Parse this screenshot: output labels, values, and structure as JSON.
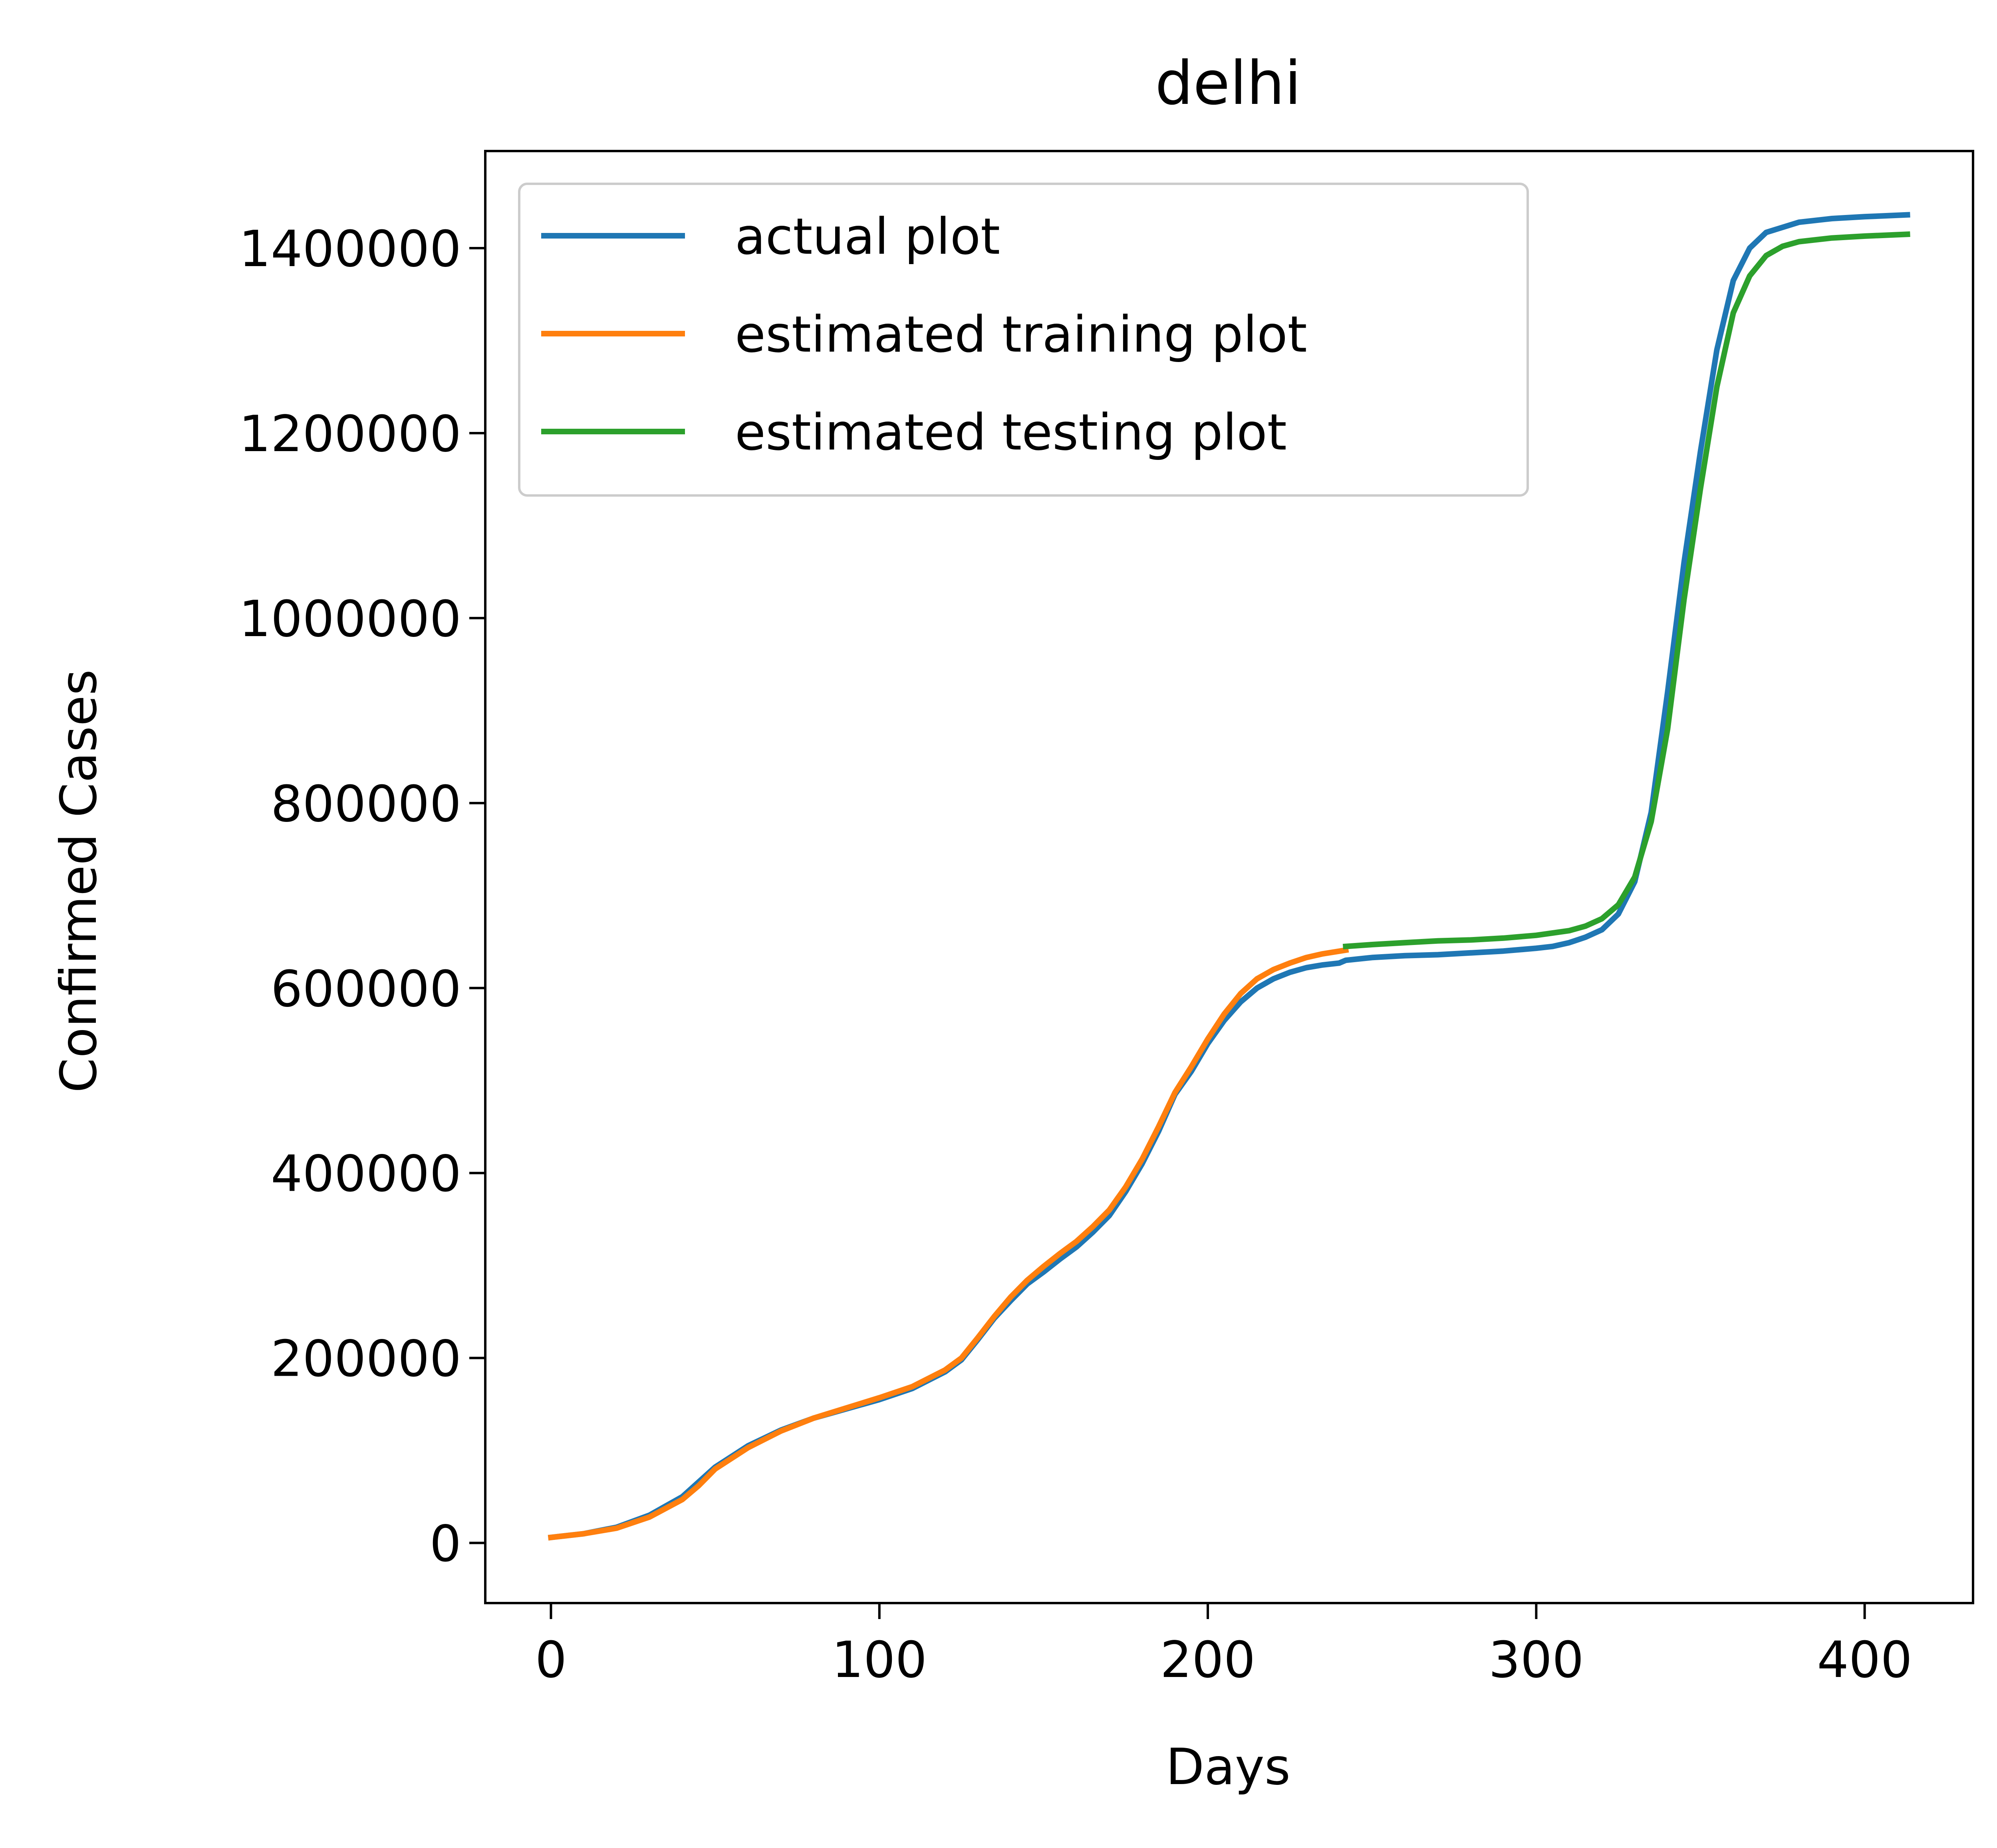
{
  "chart_data": {
    "type": "line",
    "title": "delhi",
    "xlabel": "Days",
    "ylabel": "Confirmed Cases",
    "xlim": [
      -20,
      433
    ],
    "ylim": [
      -65000,
      1505000
    ],
    "xticks": [
      0,
      100,
      200,
      300,
      400
    ],
    "yticks": [
      0,
      200000,
      400000,
      600000,
      800000,
      1000000,
      1200000,
      1400000
    ],
    "xtick_labels": [
      "0",
      "100",
      "200",
      "300",
      "400"
    ],
    "ytick_labels": [
      "0",
      "200000",
      "400000",
      "600000",
      "800000",
      "1000000",
      "1200000",
      "1400000"
    ],
    "grid": false,
    "legend_position": "top-left",
    "series": [
      {
        "name": "actual plot",
        "color": "#1f77b4",
        "points": [
          [
            0,
            6000
          ],
          [
            10,
            10000
          ],
          [
            20,
            17000
          ],
          [
            30,
            30000
          ],
          [
            40,
            50000
          ],
          [
            50,
            82000
          ],
          [
            60,
            105000
          ],
          [
            70,
            122000
          ],
          [
            80,
            135000
          ],
          [
            90,
            145000
          ],
          [
            100,
            155000
          ],
          [
            110,
            167000
          ],
          [
            120,
            185000
          ],
          [
            125,
            198000
          ],
          [
            130,
            220000
          ],
          [
            135,
            243000
          ],
          [
            140,
            262000
          ],
          [
            145,
            280000
          ],
          [
            150,
            293000
          ],
          [
            155,
            307000
          ],
          [
            160,
            320000
          ],
          [
            165,
            336000
          ],
          [
            170,
            354000
          ],
          [
            175,
            380000
          ],
          [
            180,
            410000
          ],
          [
            185,
            445000
          ],
          [
            190,
            485000
          ],
          [
            195,
            510000
          ],
          [
            200,
            540000
          ],
          [
            205,
            565000
          ],
          [
            210,
            585000
          ],
          [
            215,
            600000
          ],
          [
            220,
            610000
          ],
          [
            225,
            617000
          ],
          [
            230,
            622000
          ],
          [
            235,
            625000
          ],
          [
            240,
            627000
          ],
          [
            242,
            630000
          ],
          [
            250,
            633000
          ],
          [
            260,
            635000
          ],
          [
            270,
            636000
          ],
          [
            280,
            638000
          ],
          [
            290,
            640000
          ],
          [
            300,
            643000
          ],
          [
            305,
            645000
          ],
          [
            310,
            649000
          ],
          [
            315,
            655000
          ],
          [
            320,
            663000
          ],
          [
            325,
            680000
          ],
          [
            330,
            715000
          ],
          [
            335,
            790000
          ],
          [
            340,
            920000
          ],
          [
            345,
            1060000
          ],
          [
            350,
            1180000
          ],
          [
            355,
            1290000
          ],
          [
            360,
            1365000
          ],
          [
            365,
            1400000
          ],
          [
            370,
            1417000
          ],
          [
            380,
            1428000
          ],
          [
            390,
            1432000
          ],
          [
            400,
            1434000
          ],
          [
            413,
            1436000
          ]
        ]
      },
      {
        "name": "estimated training plot",
        "color": "#ff7f0e",
        "points": [
          [
            0,
            6000
          ],
          [
            10,
            10000
          ],
          [
            20,
            16000
          ],
          [
            30,
            28000
          ],
          [
            40,
            47000
          ],
          [
            45,
            62000
          ],
          [
            50,
            80000
          ],
          [
            60,
            103000
          ],
          [
            70,
            121000
          ],
          [
            80,
            135000
          ],
          [
            90,
            146000
          ],
          [
            100,
            157000
          ],
          [
            110,
            169000
          ],
          [
            120,
            187000
          ],
          [
            125,
            200000
          ],
          [
            130,
            222000
          ],
          [
            135,
            245000
          ],
          [
            140,
            266000
          ],
          [
            145,
            284000
          ],
          [
            150,
            299000
          ],
          [
            155,
            313000
          ],
          [
            160,
            326000
          ],
          [
            165,
            342000
          ],
          [
            170,
            360000
          ],
          [
            175,
            385000
          ],
          [
            180,
            415000
          ],
          [
            185,
            450000
          ],
          [
            190,
            487000
          ],
          [
            195,
            515000
          ],
          [
            200,
            545000
          ],
          [
            205,
            572000
          ],
          [
            210,
            594000
          ],
          [
            215,
            610000
          ],
          [
            220,
            620000
          ],
          [
            225,
            627000
          ],
          [
            230,
            633000
          ],
          [
            235,
            637000
          ],
          [
            242,
            641000
          ]
        ]
      },
      {
        "name": "estimated testing plot",
        "color": "#2ca02c",
        "points": [
          [
            242,
            645000
          ],
          [
            250,
            647000
          ],
          [
            260,
            649000
          ],
          [
            270,
            651000
          ],
          [
            280,
            652000
          ],
          [
            290,
            654000
          ],
          [
            300,
            657000
          ],
          [
            310,
            662000
          ],
          [
            315,
            667000
          ],
          [
            320,
            675000
          ],
          [
            325,
            690000
          ],
          [
            330,
            720000
          ],
          [
            335,
            780000
          ],
          [
            340,
            880000
          ],
          [
            345,
            1020000
          ],
          [
            350,
            1140000
          ],
          [
            355,
            1250000
          ],
          [
            360,
            1330000
          ],
          [
            365,
            1370000
          ],
          [
            370,
            1392000
          ],
          [
            375,
            1402000
          ],
          [
            380,
            1407000
          ],
          [
            390,
            1411000
          ],
          [
            400,
            1413000
          ],
          [
            413,
            1415000
          ]
        ]
      }
    ]
  }
}
